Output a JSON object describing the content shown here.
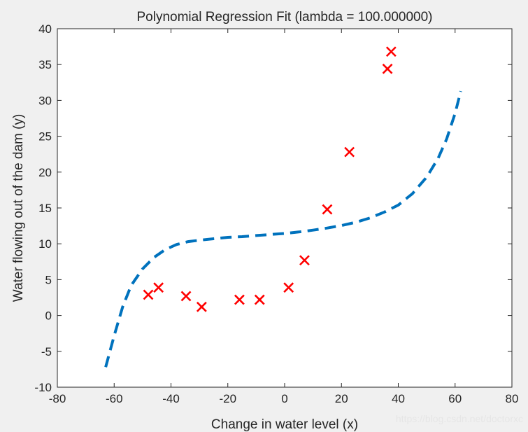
{
  "chart_data": {
    "type": "scatter",
    "title": "Polynomial Regression Fit (lambda = 100.000000)",
    "xlabel": "Change in water level (x)",
    "ylabel": "Water flowing out of the dam (y)",
    "xlim": [
      -80,
      80
    ],
    "ylim": [
      -10,
      40
    ],
    "xticks": [
      -80,
      -60,
      -40,
      -20,
      0,
      20,
      40,
      60,
      80
    ],
    "yticks": [
      -10,
      -5,
      0,
      5,
      10,
      15,
      20,
      25,
      30,
      35,
      40
    ],
    "grid": false,
    "legend": "none",
    "series": [
      {
        "kind": "scatter",
        "marker": "x",
        "color": "#ff0000",
        "points": [
          [
            -48,
            2.9
          ],
          [
            -44.4,
            3.9
          ],
          [
            -34.7,
            2.7
          ],
          [
            -29.2,
            1.2
          ],
          [
            -15.9,
            2.2
          ],
          [
            -8.8,
            2.2
          ],
          [
            1.4,
            3.9
          ],
          [
            7.0,
            7.7
          ],
          [
            15.0,
            14.8
          ],
          [
            22.8,
            22.8
          ],
          [
            36.2,
            34.4
          ],
          [
            37.5,
            36.8
          ]
        ]
      },
      {
        "kind": "line",
        "style": "dashed",
        "color": "#0072bd",
        "points": [
          [
            -63,
            -7.2
          ],
          [
            -60,
            -2.8
          ],
          [
            -57,
            1.2
          ],
          [
            -54,
            4.2
          ],
          [
            -50,
            6.5
          ],
          [
            -46,
            8.1
          ],
          [
            -42,
            9.2
          ],
          [
            -38,
            9.9
          ],
          [
            -34,
            10.3
          ],
          [
            -30,
            10.5
          ],
          [
            -25,
            10.7
          ],
          [
            -20,
            10.9
          ],
          [
            -15,
            11.0
          ],
          [
            -10,
            11.15
          ],
          [
            -5,
            11.3
          ],
          [
            0,
            11.45
          ],
          [
            5,
            11.65
          ],
          [
            10,
            11.9
          ],
          [
            15,
            12.2
          ],
          [
            20,
            12.55
          ],
          [
            25,
            13.0
          ],
          [
            30,
            13.6
          ],
          [
            35,
            14.4
          ],
          [
            40,
            15.4
          ],
          [
            45,
            17.0
          ],
          [
            50,
            19.3
          ],
          [
            54,
            21.9
          ],
          [
            57,
            24.6
          ],
          [
            60,
            28.2
          ],
          [
            62,
            31.3
          ]
        ]
      }
    ]
  },
  "watermark": "https://blog.csdn.net/doctorxc"
}
